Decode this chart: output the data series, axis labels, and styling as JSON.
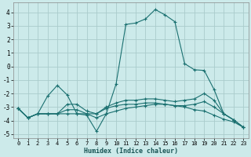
{
  "xlabel": "Humidex (Indice chaleur)",
  "xlim": [
    -0.5,
    23.5
  ],
  "ylim": [
    -5.3,
    4.7
  ],
  "yticks": [
    -5,
    -4,
    -3,
    -2,
    -1,
    0,
    1,
    2,
    3,
    4
  ],
  "xticks": [
    0,
    1,
    2,
    3,
    4,
    5,
    6,
    7,
    8,
    9,
    10,
    11,
    12,
    13,
    14,
    15,
    16,
    17,
    18,
    19,
    20,
    21,
    22,
    23
  ],
  "background_color": "#cceaea",
  "grid_color": "#aacccc",
  "line_color": "#1a7070",
  "lines": [
    {
      "x": [
        0,
        1,
        2,
        3,
        4,
        5,
        6,
        7,
        8,
        9,
        10,
        11,
        12,
        13,
        14,
        15,
        16,
        17,
        18,
        19,
        20,
        21,
        22,
        23
      ],
      "y": [
        -3.1,
        -3.8,
        -3.5,
        -2.2,
        -1.4,
        -2.1,
        -3.5,
        -3.6,
        -4.8,
        -3.5,
        -1.3,
        3.1,
        3.2,
        3.5,
        4.2,
        3.8,
        3.3,
        0.2,
        -0.25,
        -0.3,
        -1.7,
        -3.5,
        -3.95,
        -4.5
      ]
    },
    {
      "x": [
        0,
        1,
        2,
        3,
        4,
        5,
        6,
        7,
        8,
        9,
        10,
        11,
        12,
        13,
        14,
        15,
        16,
        17,
        18,
        19,
        20,
        21,
        22,
        23
      ],
      "y": [
        -3.1,
        -3.8,
        -3.5,
        -3.5,
        -3.5,
        -2.8,
        -2.8,
        -3.3,
        -3.5,
        -3.0,
        -2.7,
        -2.5,
        -2.5,
        -2.4,
        -2.4,
        -2.5,
        -2.6,
        -2.5,
        -2.4,
        -2.0,
        -2.5,
        -3.5,
        -3.95,
        -4.5
      ]
    },
    {
      "x": [
        0,
        1,
        2,
        3,
        4,
        5,
        6,
        7,
        8,
        9,
        10,
        11,
        12,
        13,
        14,
        15,
        16,
        17,
        18,
        19,
        20,
        21,
        22,
        23
      ],
      "y": [
        -3.1,
        -3.8,
        -3.5,
        -3.5,
        -3.5,
        -3.2,
        -3.2,
        -3.5,
        -3.5,
        -3.1,
        -2.9,
        -2.8,
        -2.8,
        -2.7,
        -2.7,
        -2.8,
        -2.9,
        -2.9,
        -2.8,
        -2.6,
        -3.0,
        -3.5,
        -3.95,
        -4.5
      ]
    },
    {
      "x": [
        0,
        1,
        2,
        3,
        4,
        5,
        6,
        7,
        8,
        9,
        10,
        11,
        12,
        13,
        14,
        15,
        16,
        17,
        18,
        19,
        20,
        21,
        22,
        23
      ],
      "y": [
        -3.1,
        -3.8,
        -3.5,
        -3.5,
        -3.5,
        -3.5,
        -3.5,
        -3.5,
        -3.8,
        -3.5,
        -3.3,
        -3.1,
        -3.0,
        -2.9,
        -2.8,
        -2.8,
        -2.9,
        -3.0,
        -3.2,
        -3.3,
        -3.6,
        -3.9,
        -4.1,
        -4.5
      ]
    }
  ]
}
